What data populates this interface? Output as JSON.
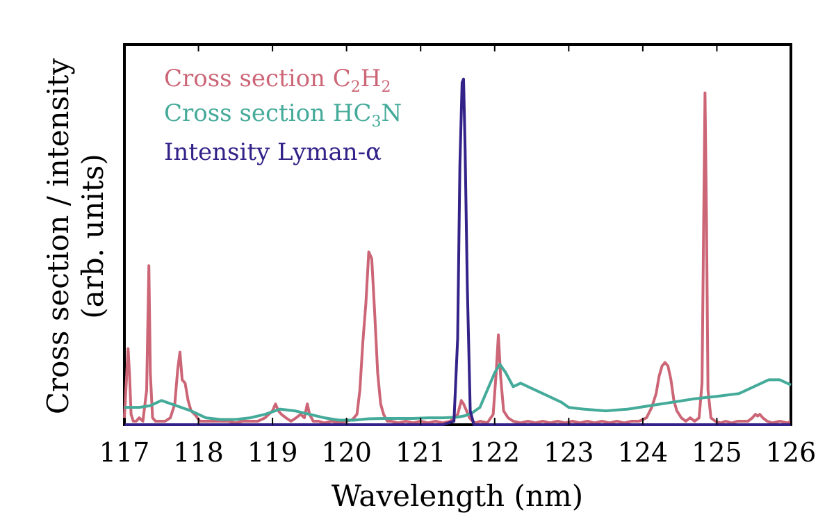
{
  "chart_data": {
    "type": "line",
    "title": "",
    "xlabel": "Wavelength (nm)",
    "ylabel": [
      "Cross section / intensity",
      "(arb. units)"
    ],
    "xlim": [
      117,
      126
    ],
    "ylim": [
      0,
      1.1
    ],
    "xticks": [
      117,
      118,
      119,
      120,
      121,
      122,
      123,
      124,
      125,
      126
    ],
    "xtick_labels": [
      "117",
      "118",
      "119",
      "120",
      "121",
      "122",
      "123",
      "124",
      "125",
      "126"
    ],
    "yticks_labeled": false,
    "grid": false,
    "legend": {
      "placement": "top-left",
      "frame": false
    },
    "series": [
      {
        "name": "Cross section C2H2",
        "label_parts": [
          {
            "t": "Cross section C",
            "sub": false
          },
          {
            "t": "2",
            "sub": true
          },
          {
            "t": "H",
            "sub": false
          },
          {
            "t": "2",
            "sub": true
          }
        ],
        "color": "#cc6677",
        "x": [
          117.0,
          117.05,
          117.07,
          117.09,
          117.12,
          117.16,
          117.2,
          117.25,
          117.3,
          117.33,
          117.35,
          117.38,
          117.42,
          117.48,
          117.55,
          117.62,
          117.68,
          117.72,
          117.75,
          117.78,
          117.82,
          117.86,
          117.9,
          117.95,
          118.02,
          118.1,
          118.2,
          118.3,
          118.4,
          118.5,
          118.6,
          118.7,
          118.8,
          118.9,
          119.0,
          119.04,
          119.08,
          119.12,
          119.18,
          119.25,
          119.32,
          119.38,
          119.43,
          119.47,
          119.5,
          119.55,
          119.62,
          119.7,
          119.8,
          119.9,
          120.0,
          120.08,
          120.14,
          120.18,
          120.22,
          120.26,
          120.3,
          120.34,
          120.38,
          120.42,
          120.46,
          120.5,
          120.55,
          120.6,
          120.7,
          120.8,
          120.9,
          121.0,
          121.1,
          121.2,
          121.3,
          121.4,
          121.45,
          121.5,
          121.55,
          121.58,
          121.62,
          121.66,
          121.7,
          121.75,
          121.8,
          121.9,
          121.98,
          122.02,
          122.05,
          122.08,
          122.12,
          122.18,
          122.25,
          122.35,
          122.45,
          122.55,
          122.65,
          122.75,
          122.85,
          122.95,
          123.05,
          123.15,
          123.25,
          123.35,
          123.45,
          123.55,
          123.65,
          123.75,
          123.85,
          123.95,
          124.05,
          124.12,
          124.18,
          124.22,
          124.26,
          124.3,
          124.34,
          124.38,
          124.42,
          124.46,
          124.52,
          124.58,
          124.64,
          124.7,
          124.76,
          124.8,
          124.82,
          124.84,
          124.86,
          124.88,
          124.92,
          124.98,
          125.05,
          125.12,
          125.2,
          125.28,
          125.35,
          125.42,
          125.48,
          125.52,
          125.55,
          125.58,
          125.62,
          125.68,
          125.75,
          125.85,
          125.95,
          126.0
        ],
        "values": [
          0.02,
          0.22,
          0.14,
          0.03,
          0.01,
          0.01,
          0.02,
          0.01,
          0.1,
          0.46,
          0.15,
          0.02,
          0.01,
          0.01,
          0.01,
          0.02,
          0.06,
          0.16,
          0.21,
          0.13,
          0.12,
          0.07,
          0.04,
          0.03,
          0.01,
          0.01,
          0.01,
          0.01,
          0.01,
          0.005,
          0.01,
          0.01,
          0.01,
          0.02,
          0.04,
          0.06,
          0.04,
          0.03,
          0.02,
          0.01,
          0.02,
          0.03,
          0.02,
          0.06,
          0.03,
          0.01,
          0.01,
          0.005,
          0.01,
          0.005,
          0.01,
          0.015,
          0.03,
          0.1,
          0.24,
          0.35,
          0.5,
          0.48,
          0.32,
          0.15,
          0.06,
          0.03,
          0.01,
          0.01,
          0.005,
          0.01,
          0.005,
          0.01,
          0.005,
          0.01,
          0.005,
          0.01,
          0.02,
          0.03,
          0.07,
          0.06,
          0.04,
          0.02,
          0.01,
          0.005,
          0.01,
          0.005,
          0.03,
          0.15,
          0.26,
          0.14,
          0.04,
          0.02,
          0.01,
          0.005,
          0.01,
          0.005,
          0.01,
          0.005,
          0.01,
          0.005,
          0.01,
          0.005,
          0.01,
          0.005,
          0.01,
          0.005,
          0.01,
          0.005,
          0.01,
          0.01,
          0.02,
          0.05,
          0.09,
          0.14,
          0.17,
          0.18,
          0.17,
          0.13,
          0.07,
          0.04,
          0.02,
          0.01,
          0.02,
          0.01,
          0.02,
          0.12,
          0.55,
          0.96,
          0.6,
          0.1,
          0.02,
          0.01,
          0.005,
          0.01,
          0.005,
          0.01,
          0.01,
          0.01,
          0.02,
          0.03,
          0.025,
          0.03,
          0.02,
          0.01,
          0.005,
          0.01,
          0.005,
          0.01
        ]
      },
      {
        "name": "Cross section HC3N",
        "label_parts": [
          {
            "t": "Cross section HC",
            "sub": false
          },
          {
            "t": "3",
            "sub": true
          },
          {
            "t": "N",
            "sub": false
          }
        ],
        "color": "#44aa99",
        "x": [
          117.0,
          117.2,
          117.35,
          117.5,
          117.7,
          117.9,
          118.1,
          118.3,
          118.5,
          118.7,
          118.9,
          119.1,
          119.3,
          119.5,
          119.7,
          119.9,
          120.1,
          120.3,
          120.5,
          120.7,
          120.9,
          121.1,
          121.3,
          121.5,
          121.6,
          121.7,
          121.8,
          121.9,
          122.0,
          122.07,
          122.15,
          122.25,
          122.35,
          122.5,
          122.7,
          122.9,
          123.0,
          123.2,
          123.5,
          123.8,
          124.1,
          124.4,
          124.7,
          125.0,
          125.3,
          125.5,
          125.7,
          125.85,
          126.0
        ],
        "values": [
          0.05,
          0.05,
          0.055,
          0.07,
          0.055,
          0.04,
          0.02,
          0.015,
          0.015,
          0.02,
          0.03,
          0.045,
          0.04,
          0.03,
          0.02,
          0.013,
          0.013,
          0.017,
          0.018,
          0.018,
          0.018,
          0.02,
          0.02,
          0.022,
          0.026,
          0.035,
          0.05,
          0.1,
          0.15,
          0.175,
          0.15,
          0.11,
          0.12,
          0.105,
          0.085,
          0.065,
          0.05,
          0.045,
          0.04,
          0.045,
          0.055,
          0.065,
          0.075,
          0.082,
          0.09,
          0.11,
          0.13,
          0.13,
          0.115
        ]
      },
      {
        "name": "Intensity Lyman-α",
        "label_parts": [
          {
            "t": "Intensity Lyman-α",
            "sub": false
          }
        ],
        "color": "#332288",
        "x": [
          117.0,
          121.3,
          121.45,
          121.5,
          121.53,
          121.56,
          121.58,
          121.6,
          121.63,
          121.67,
          121.72,
          126.0
        ],
        "values": [
          0.0,
          0.0,
          0.01,
          0.25,
          0.75,
          0.99,
          1.0,
          0.8,
          0.4,
          0.04,
          0.0,
          0.0
        ]
      }
    ]
  }
}
